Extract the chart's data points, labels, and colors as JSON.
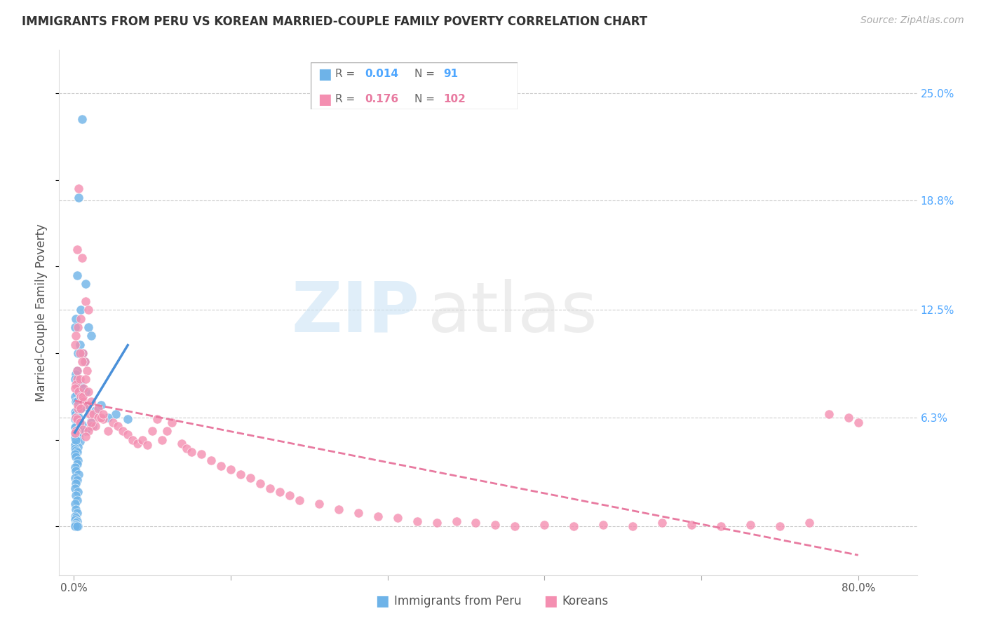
{
  "title": "IMMIGRANTS FROM PERU VS KOREAN MARRIED-COUPLE FAMILY POVERTY CORRELATION CHART",
  "source": "Source: ZipAtlas.com",
  "ylabel": "Married-Couple Family Poverty",
  "yticks": [
    0.0,
    0.063,
    0.125,
    0.188,
    0.25
  ],
  "ytick_labels": [
    "",
    "6.3%",
    "12.5%",
    "18.8%",
    "25.0%"
  ],
  "xtick_labels": [
    "0.0%",
    "",
    "",
    "",
    "",
    "80.0%"
  ],
  "xlim": [
    -0.015,
    0.86
  ],
  "ylim": [
    -0.028,
    0.275
  ],
  "peru_color": "#6eb3e8",
  "korean_color": "#f48fb1",
  "peru_line_color": "#4a90d9",
  "korean_line_color": "#e87aa0",
  "peru_R": "0.014",
  "peru_N": "91",
  "korean_R": "0.176",
  "korean_N": "102",
  "legend_label_peru": "Immigrants from Peru",
  "legend_label_korean": "Koreans",
  "peru_scatter_x": [
    0.008,
    0.005,
    0.003,
    0.012,
    0.007,
    0.002,
    0.001,
    0.015,
    0.018,
    0.006,
    0.004,
    0.009,
    0.011,
    0.003,
    0.002,
    0.001,
    0.005,
    0.007,
    0.008,
    0.012,
    0.003,
    0.001,
    0.004,
    0.002,
    0.006,
    0.009,
    0.013,
    0.007,
    0.003,
    0.001,
    0.002,
    0.004,
    0.005,
    0.001,
    0.003,
    0.006,
    0.008,
    0.002,
    0.001,
    0.004,
    0.007,
    0.003,
    0.002,
    0.005,
    0.001,
    0.003,
    0.006,
    0.002,
    0.001,
    0.004,
    0.001,
    0.002,
    0.003,
    0.001,
    0.002,
    0.004,
    0.003,
    0.001,
    0.002,
    0.005,
    0.001,
    0.003,
    0.002,
    0.001,
    0.004,
    0.002,
    0.003,
    0.001,
    0.002,
    0.003,
    0.001,
    0.002,
    0.001,
    0.003,
    0.002,
    0.001,
    0.004,
    0.002,
    0.001,
    0.003,
    0.043,
    0.035,
    0.022,
    0.018,
    0.028,
    0.055,
    0.019,
    0.012,
    0.007,
    0.003,
    0.002
  ],
  "peru_scatter_y": [
    0.235,
    0.19,
    0.145,
    0.14,
    0.125,
    0.12,
    0.115,
    0.115,
    0.11,
    0.105,
    0.1,
    0.1,
    0.095,
    0.09,
    0.088,
    0.085,
    0.083,
    0.082,
    0.08,
    0.078,
    0.077,
    0.075,
    0.073,
    0.072,
    0.071,
    0.07,
    0.069,
    0.068,
    0.067,
    0.066,
    0.065,
    0.064,
    0.063,
    0.062,
    0.061,
    0.06,
    0.059,
    0.058,
    0.057,
    0.056,
    0.055,
    0.054,
    0.053,
    0.052,
    0.051,
    0.05,
    0.049,
    0.048,
    0.047,
    0.046,
    0.045,
    0.044,
    0.043,
    0.042,
    0.04,
    0.038,
    0.036,
    0.034,
    0.032,
    0.03,
    0.028,
    0.027,
    0.025,
    0.022,
    0.02,
    0.018,
    0.015,
    0.013,
    0.01,
    0.008,
    0.006,
    0.005,
    0.004,
    0.003,
    0.002,
    0.001,
    0.0,
    0.001,
    0.0,
    0.0,
    0.065,
    0.063,
    0.067,
    0.061,
    0.07,
    0.062,
    0.058,
    0.055,
    0.068,
    0.072,
    0.05
  ],
  "korean_scatter_x": [
    0.005,
    0.003,
    0.008,
    0.012,
    0.015,
    0.007,
    0.004,
    0.002,
    0.001,
    0.009,
    0.006,
    0.011,
    0.013,
    0.003,
    0.002,
    0.001,
    0.005,
    0.007,
    0.008,
    0.01,
    0.014,
    0.004,
    0.016,
    0.002,
    0.003,
    0.006,
    0.018,
    0.009,
    0.002,
    0.001,
    0.02,
    0.025,
    0.03,
    0.022,
    0.018,
    0.015,
    0.012,
    0.028,
    0.035,
    0.04,
    0.045,
    0.05,
    0.055,
    0.06,
    0.065,
    0.07,
    0.075,
    0.08,
    0.085,
    0.09,
    0.095,
    0.1,
    0.11,
    0.115,
    0.12,
    0.13,
    0.14,
    0.15,
    0.16,
    0.17,
    0.18,
    0.19,
    0.2,
    0.21,
    0.22,
    0.23,
    0.25,
    0.27,
    0.29,
    0.31,
    0.33,
    0.35,
    0.37,
    0.39,
    0.41,
    0.43,
    0.45,
    0.48,
    0.51,
    0.54,
    0.57,
    0.6,
    0.63,
    0.66,
    0.69,
    0.72,
    0.75,
    0.77,
    0.79,
    0.8,
    0.008,
    0.003,
    0.006,
    0.009,
    0.004,
    0.007,
    0.01,
    0.012,
    0.015,
    0.018,
    0.025,
    0.03
  ],
  "korean_scatter_y": [
    0.195,
    0.16,
    0.155,
    0.13,
    0.125,
    0.12,
    0.115,
    0.11,
    0.105,
    0.1,
    0.1,
    0.095,
    0.09,
    0.085,
    0.082,
    0.08,
    0.078,
    0.075,
    0.073,
    0.072,
    0.07,
    0.068,
    0.065,
    0.063,
    0.062,
    0.06,
    0.058,
    0.056,
    0.055,
    0.054,
    0.065,
    0.063,
    0.062,
    0.058,
    0.06,
    0.055,
    0.052,
    0.063,
    0.055,
    0.06,
    0.058,
    0.055,
    0.053,
    0.05,
    0.048,
    0.05,
    0.047,
    0.055,
    0.062,
    0.05,
    0.055,
    0.06,
    0.048,
    0.045,
    0.043,
    0.042,
    0.038,
    0.035,
    0.033,
    0.03,
    0.028,
    0.025,
    0.022,
    0.02,
    0.018,
    0.015,
    0.013,
    0.01,
    0.008,
    0.006,
    0.005,
    0.003,
    0.002,
    0.003,
    0.002,
    0.001,
    0.0,
    0.001,
    0.0,
    0.001,
    0.0,
    0.002,
    0.001,
    0.0,
    0.001,
    0.0,
    0.002,
    0.065,
    0.063,
    0.06,
    0.095,
    0.09,
    0.085,
    0.075,
    0.07,
    0.068,
    0.08,
    0.085,
    0.078,
    0.072,
    0.068,
    0.065
  ]
}
